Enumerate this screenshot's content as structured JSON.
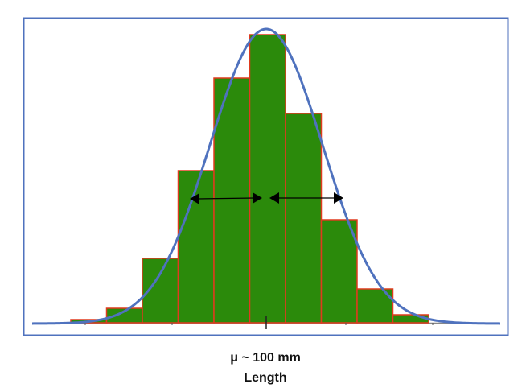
{
  "chart_data": {
    "type": "bar",
    "subtype": "histogram-with-normal-curve",
    "title": "",
    "xlabel": "Length",
    "ylabel": "",
    "annotations": [
      {
        "text": "μ ~ 100 mm",
        "position": "below x-axis center"
      },
      {
        "text": "±1σ arrows",
        "type": "double-headed arrows from mean to curve at both sides"
      }
    ],
    "categories": [
      "bin1",
      "bin2",
      "bin3",
      "bin4",
      "bin5",
      "bin6",
      "bin7",
      "bin8",
      "bin9",
      "bin10"
    ],
    "values": [
      4,
      18,
      80,
      189,
      304,
      358,
      260,
      128,
      42,
      10
    ],
    "value_units": "relative frequency (pixel height, unlabeled axis)",
    "curve": {
      "type": "normal",
      "mean_label": "μ ~ 100 mm",
      "relative_peak": 366
    },
    "grid": false,
    "legend": null,
    "colors": {
      "bar_fill": "#2B8A0B",
      "bar_stroke": "#E03A1E",
      "curve": "#4F72BE",
      "frame": "#4F72BE",
      "arrows": "#000000",
      "axis": "#888888"
    }
  },
  "labels": {
    "mean": "μ ~ 100 mm",
    "axis": "Length"
  }
}
